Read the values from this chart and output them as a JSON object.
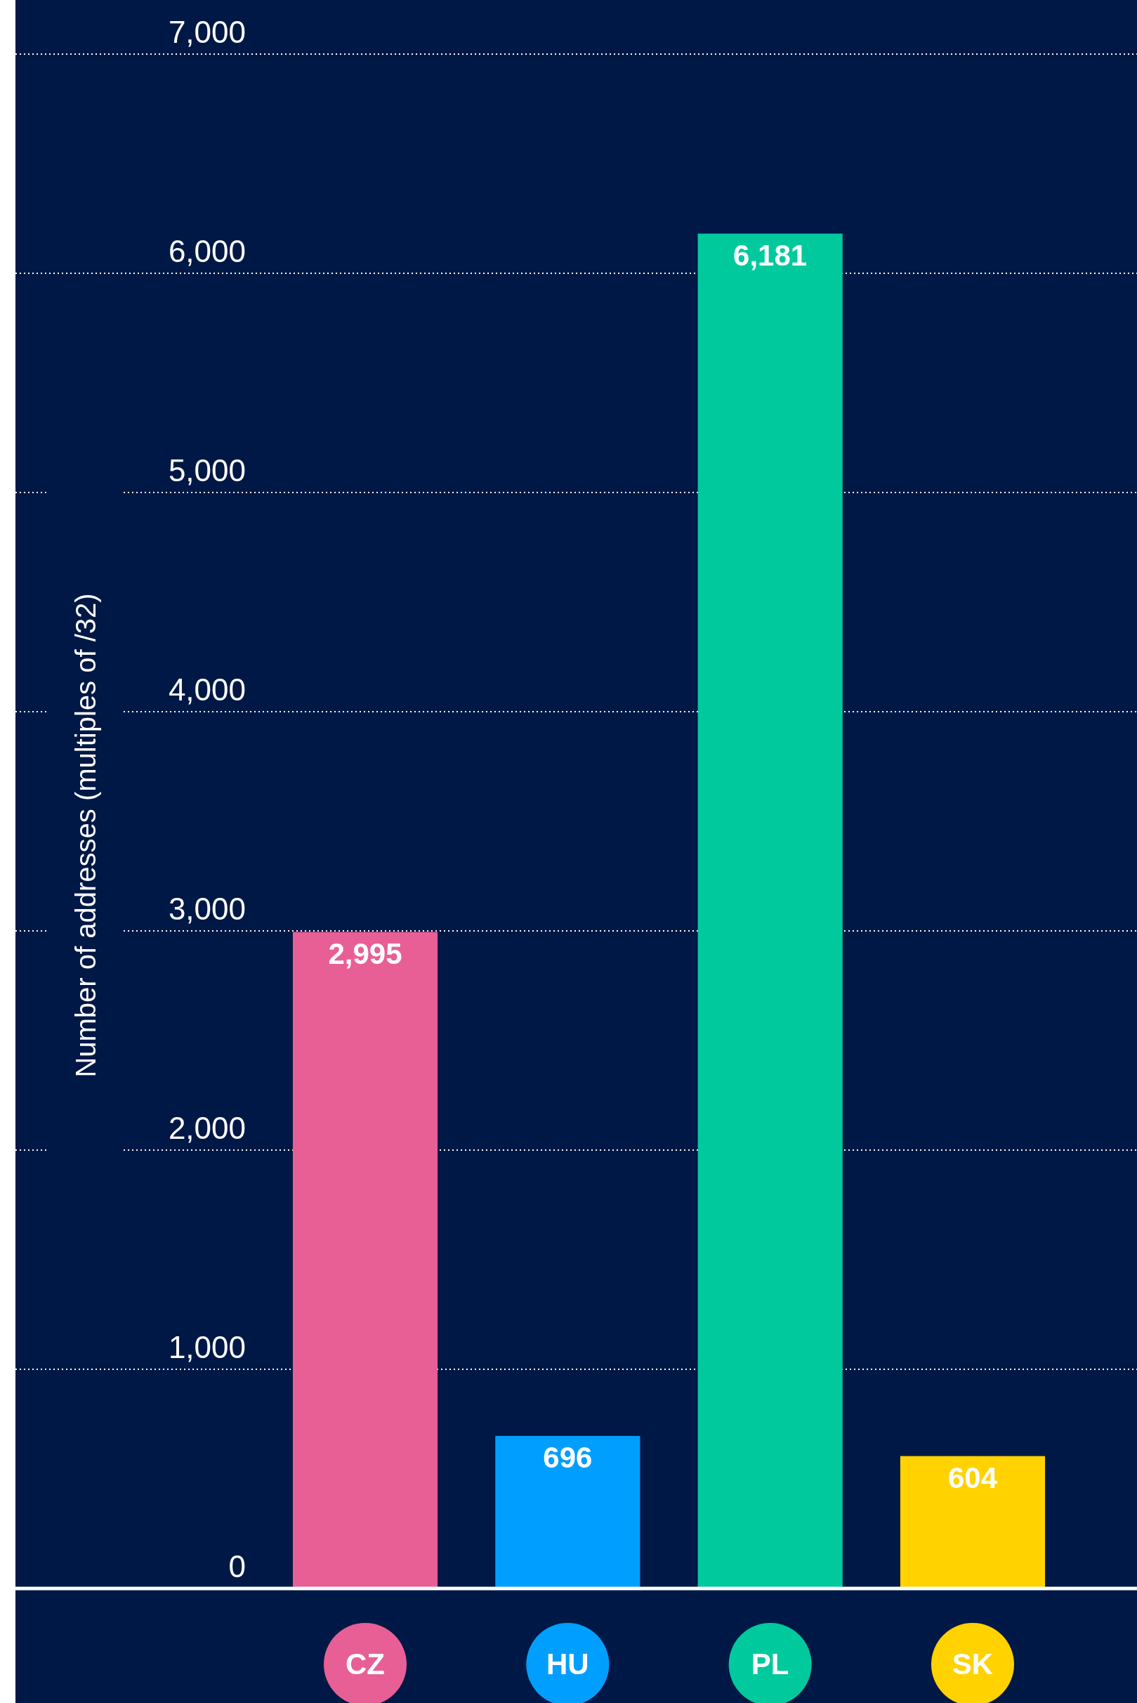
{
  "chart_data": {
    "type": "bar",
    "ylabel": "Number of addresses (multiples of /32)",
    "categories": [
      "CZ",
      "HU",
      "PL",
      "SK"
    ],
    "values": [
      2995,
      696,
      6181,
      604
    ],
    "colors": [
      "#e85f96",
      "#009fff",
      "#00c99e",
      "#ffd200"
    ],
    "value_labels": [
      "2,995",
      "696",
      "6,181",
      "604"
    ],
    "ylim": [
      0,
      7000
    ],
    "yticks": [
      {
        "value": 0,
        "label": "0"
      },
      {
        "value": 1000,
        "label": "1,000"
      },
      {
        "value": 2000,
        "label": "2,000"
      },
      {
        "value": 3000,
        "label": "3,000"
      },
      {
        "value": 4000,
        "label": "4,000"
      },
      {
        "value": 5000,
        "label": "5,000"
      },
      {
        "value": 6000,
        "label": "6,000"
      },
      {
        "value": 7000,
        "label": "7,000"
      }
    ],
    "grid": "y"
  }
}
